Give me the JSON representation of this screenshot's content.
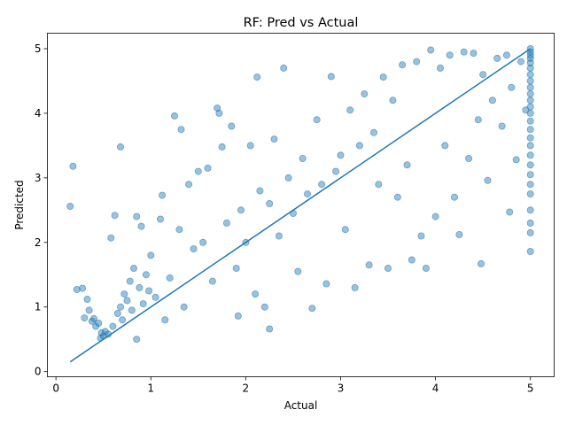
{
  "chart_data": {
    "type": "scatter",
    "title": "RF: Pred vs Actual",
    "xlabel": "Actual",
    "ylabel": "Predicted",
    "xlim": [
      -0.09,
      5.25
    ],
    "ylim": [
      -0.08,
      5.24
    ],
    "xticks": [
      "0",
      "1",
      "2",
      "3",
      "4",
      "5"
    ],
    "yticks": [
      "0",
      "1",
      "2",
      "3",
      "4",
      "5"
    ],
    "grid": false,
    "marker_color": "#1f77b4",
    "marker_alpha": 0.45,
    "series": [
      {
        "kind": "points",
        "points": [
          [
            0.15,
            2.56
          ],
          [
            0.18,
            3.18
          ],
          [
            0.22,
            1.27
          ],
          [
            0.28,
            1.29
          ],
          [
            0.3,
            0.83
          ],
          [
            0.33,
            1.12
          ],
          [
            0.35,
            0.95
          ],
          [
            0.38,
            0.78
          ],
          [
            0.4,
            0.82
          ],
          [
            0.42,
            0.7
          ],
          [
            0.45,
            0.75
          ],
          [
            0.47,
            0.52
          ],
          [
            0.48,
            0.6
          ],
          [
            0.5,
            0.55
          ],
          [
            0.52,
            0.62
          ],
          [
            0.55,
            0.58
          ],
          [
            0.58,
            2.07
          ],
          [
            0.6,
            0.7
          ],
          [
            0.62,
            2.42
          ],
          [
            0.65,
            0.9
          ],
          [
            0.68,
            1.0
          ],
          [
            0.68,
            3.48
          ],
          [
            0.7,
            0.8
          ],
          [
            0.72,
            1.2
          ],
          [
            0.75,
            1.1
          ],
          [
            0.78,
            1.4
          ],
          [
            0.8,
            0.95
          ],
          [
            0.82,
            1.6
          ],
          [
            0.85,
            0.5
          ],
          [
            0.85,
            2.4
          ],
          [
            0.88,
            1.3
          ],
          [
            0.9,
            2.25
          ],
          [
            0.92,
            1.05
          ],
          [
            0.95,
            1.5
          ],
          [
            0.98,
            1.25
          ],
          [
            1.0,
            1.8
          ],
          [
            1.05,
            1.15
          ],
          [
            1.1,
            2.36
          ],
          [
            1.12,
            2.73
          ],
          [
            1.15,
            0.8
          ],
          [
            1.2,
            1.45
          ],
          [
            1.25,
            3.96
          ],
          [
            1.3,
            2.2
          ],
          [
            1.32,
            3.75
          ],
          [
            1.35,
            1.0
          ],
          [
            1.4,
            2.9
          ],
          [
            1.45,
            1.9
          ],
          [
            1.5,
            3.1
          ],
          [
            1.55,
            2.0
          ],
          [
            1.6,
            3.15
          ],
          [
            1.65,
            1.4
          ],
          [
            1.7,
            4.08
          ],
          [
            1.72,
            4.0
          ],
          [
            1.75,
            3.48
          ],
          [
            1.8,
            2.3
          ],
          [
            1.85,
            3.8
          ],
          [
            1.9,
            1.6
          ],
          [
            1.92,
            0.86
          ],
          [
            1.95,
            2.5
          ],
          [
            2.0,
            2.0
          ],
          [
            2.05,
            3.5
          ],
          [
            2.1,
            1.2
          ],
          [
            2.12,
            4.56
          ],
          [
            2.15,
            2.8
          ],
          [
            2.2,
            1.0
          ],
          [
            2.25,
            0.66
          ],
          [
            2.25,
            2.6
          ],
          [
            2.3,
            3.6
          ],
          [
            2.35,
            2.1
          ],
          [
            2.4,
            4.7
          ],
          [
            2.45,
            3.0
          ],
          [
            2.5,
            2.45
          ],
          [
            2.55,
            1.55
          ],
          [
            2.6,
            3.3
          ],
          [
            2.65,
            2.75
          ],
          [
            2.7,
            0.98
          ],
          [
            2.75,
            3.9
          ],
          [
            2.8,
            2.9
          ],
          [
            2.85,
            1.36
          ],
          [
            2.9,
            4.57
          ],
          [
            2.95,
            3.1
          ],
          [
            3.0,
            3.35
          ],
          [
            3.05,
            2.2
          ],
          [
            3.1,
            4.05
          ],
          [
            3.15,
            1.3
          ],
          [
            3.2,
            3.5
          ],
          [
            3.25,
            4.3
          ],
          [
            3.3,
            1.65
          ],
          [
            3.35,
            3.7
          ],
          [
            3.4,
            2.9
          ],
          [
            3.45,
            4.56
          ],
          [
            3.5,
            1.6
          ],
          [
            3.55,
            4.2
          ],
          [
            3.6,
            2.7
          ],
          [
            3.65,
            4.75
          ],
          [
            3.7,
            3.2
          ],
          [
            3.75,
            1.73
          ],
          [
            3.8,
            4.8
          ],
          [
            3.85,
            2.1
          ],
          [
            3.9,
            1.6
          ],
          [
            3.95,
            4.98
          ],
          [
            4.0,
            2.4
          ],
          [
            4.05,
            4.7
          ],
          [
            4.1,
            3.5
          ],
          [
            4.15,
            4.9
          ],
          [
            4.2,
            2.7
          ],
          [
            4.25,
            2.12
          ],
          [
            4.3,
            4.95
          ],
          [
            4.35,
            3.3
          ],
          [
            4.4,
            4.93
          ],
          [
            4.45,
            3.9
          ],
          [
            4.48,
            1.67
          ],
          [
            4.5,
            4.6
          ],
          [
            4.55,
            2.96
          ],
          [
            4.6,
            4.2
          ],
          [
            4.65,
            4.85
          ],
          [
            4.7,
            3.8
          ],
          [
            4.75,
            4.9
          ],
          [
            4.78,
            2.47
          ],
          [
            4.8,
            4.4
          ],
          [
            4.85,
            3.28
          ],
          [
            4.9,
            4.8
          ],
          [
            4.95,
            4.05
          ],
          [
            5.0,
            1.86
          ],
          [
            5.0,
            2.15
          ],
          [
            5.0,
            2.3
          ],
          [
            5.0,
            2.5
          ],
          [
            5.0,
            2.75
          ],
          [
            5.0,
            2.9
          ],
          [
            5.0,
            3.05
          ],
          [
            5.0,
            3.2
          ],
          [
            5.0,
            3.35
          ],
          [
            5.0,
            3.5
          ],
          [
            5.0,
            3.62
          ],
          [
            5.0,
            3.75
          ],
          [
            5.0,
            3.88
          ],
          [
            5.0,
            4.0
          ],
          [
            5.0,
            4.1
          ],
          [
            5.0,
            4.2
          ],
          [
            5.0,
            4.3
          ],
          [
            5.0,
            4.4
          ],
          [
            5.0,
            4.5
          ],
          [
            5.0,
            4.6
          ],
          [
            5.0,
            4.7
          ],
          [
            5.0,
            4.78
          ],
          [
            5.0,
            4.85
          ],
          [
            5.0,
            4.9
          ],
          [
            5.0,
            4.95
          ],
          [
            5.0,
            5.0
          ]
        ]
      },
      {
        "kind": "line",
        "points": [
          [
            0.15,
            0.15
          ],
          [
            5.0,
            5.0
          ]
        ]
      }
    ]
  }
}
